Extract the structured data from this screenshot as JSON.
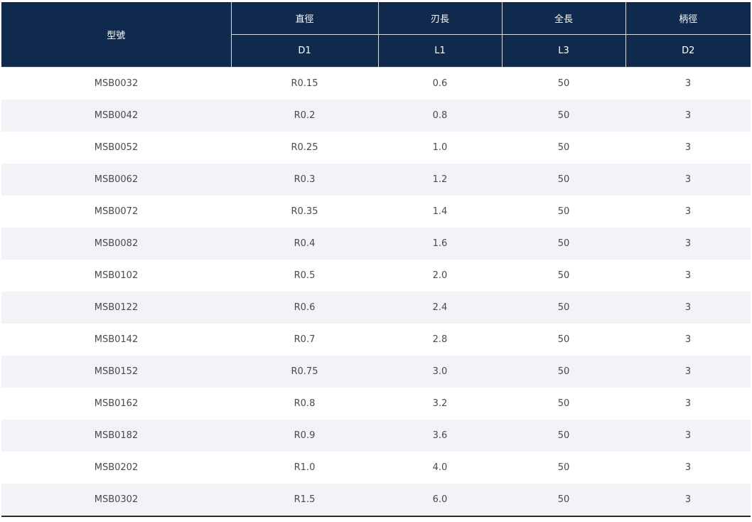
{
  "table": {
    "headers": {
      "model": "型號",
      "groups": [
        "直徑",
        "刃長",
        "全長",
        "柄徑"
      ],
      "codes": [
        "D1",
        "L1",
        "L3",
        "D2"
      ]
    },
    "rows": [
      [
        "MSB0032",
        "R0.15",
        "0.6",
        "50",
        "3"
      ],
      [
        "MSB0042",
        "R0.2",
        "0.8",
        "50",
        "3"
      ],
      [
        "MSB0052",
        "R0.25",
        "1.0",
        "50",
        "3"
      ],
      [
        "MSB0062",
        "R0.3",
        "1.2",
        "50",
        "3"
      ],
      [
        "MSB0072",
        "R0.35",
        "1.4",
        "50",
        "3"
      ],
      [
        "MSB0082",
        "R0.4",
        "1.6",
        "50",
        "3"
      ],
      [
        "MSB0102",
        "R0.5",
        "2.0",
        "50",
        "3"
      ],
      [
        "MSB0122",
        "R0.6",
        "2.4",
        "50",
        "3"
      ],
      [
        "MSB0142",
        "R0.7",
        "2.8",
        "50",
        "3"
      ],
      [
        "MSB0152",
        "R0.75",
        "3.0",
        "50",
        "3"
      ],
      [
        "MSB0162",
        "R0.8",
        "3.2",
        "50",
        "3"
      ],
      [
        "MSB0182",
        "R0.9",
        "3.6",
        "50",
        "3"
      ],
      [
        "MSB0202",
        "R1.0",
        "4.0",
        "50",
        "3"
      ],
      [
        "MSB0302",
        "R1.5",
        "6.0",
        "50",
        "3"
      ]
    ]
  },
  "colors": {
    "header_bg": "#0f2a4c",
    "header_text": "#ffffff",
    "row_alt_bg": "#f2f2f7",
    "body_text": "#4a4a4a"
  }
}
